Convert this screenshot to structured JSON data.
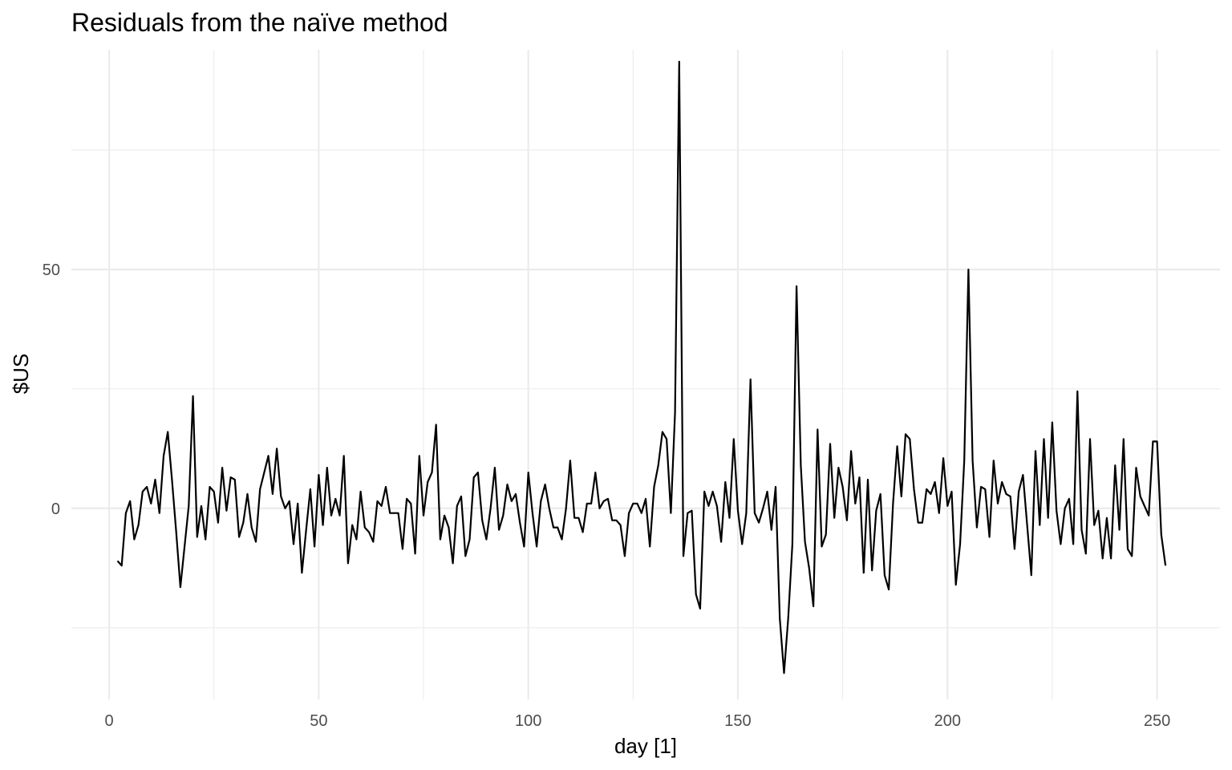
{
  "chart_data": {
    "type": "line",
    "title": "Residuals from the naïve method",
    "xlabel": "day [1]",
    "ylabel": "$US",
    "xlim": [
      -9,
      265
    ],
    "ylim": [
      -40,
      96
    ],
    "x_ticks": [
      0,
      50,
      100,
      150,
      200,
      250
    ],
    "x_minor_ticks": [
      25,
      75,
      125,
      175,
      225
    ],
    "y_ticks": [
      0,
      50
    ],
    "y_minor_ticks": [
      -25,
      25,
      75
    ],
    "grid": true,
    "legend": "none",
    "series": [
      {
        "color": "#000000",
        "x": [
          2,
          3,
          4,
          5,
          6,
          7,
          8,
          9,
          10,
          11,
          12,
          13,
          14,
          15,
          16,
          17,
          18,
          19,
          20,
          21,
          22,
          23,
          24,
          25,
          26,
          27,
          28,
          29,
          30,
          31,
          32,
          33,
          34,
          35,
          36,
          37,
          38,
          39,
          40,
          41,
          42,
          43,
          44,
          45,
          46,
          47,
          48,
          49,
          50,
          51,
          52,
          53,
          54,
          55,
          56,
          57,
          58,
          59,
          60,
          61,
          62,
          63,
          64,
          65,
          66,
          67,
          68,
          69,
          70,
          71,
          72,
          73,
          74,
          75,
          76,
          77,
          78,
          79,
          80,
          81,
          82,
          83,
          84,
          85,
          86,
          87,
          88,
          89,
          90,
          91,
          92,
          93,
          94,
          95,
          96,
          97,
          98,
          99,
          100,
          101,
          102,
          103,
          104,
          105,
          106,
          107,
          108,
          109,
          110,
          111,
          112,
          113,
          114,
          115,
          116,
          117,
          118,
          119,
          120,
          121,
          122,
          123,
          124,
          125,
          126,
          127,
          128,
          129,
          130,
          131,
          132,
          133,
          134,
          135,
          136,
          137,
          138,
          139,
          140,
          141,
          142,
          143,
          144,
          145,
          146,
          147,
          148,
          149,
          150,
          151,
          152,
          153,
          154,
          155,
          156,
          157,
          158,
          159,
          160,
          161,
          162,
          163,
          164,
          165,
          166,
          167,
          168,
          169,
          170,
          171,
          172,
          173,
          174,
          175,
          176,
          177,
          178,
          179,
          180,
          181,
          182,
          183,
          184,
          185,
          186,
          187,
          188,
          189,
          190,
          191,
          192,
          193,
          194,
          195,
          196,
          197,
          198,
          199,
          200,
          201,
          202,
          203,
          204,
          205,
          206,
          207,
          208,
          209,
          210,
          211,
          212,
          213,
          214,
          215,
          216,
          217,
          218,
          219,
          220,
          221,
          222,
          223,
          224,
          225,
          226,
          227,
          228,
          229,
          230,
          231,
          232,
          233,
          234,
          235,
          236,
          237,
          238,
          239,
          240,
          241,
          242,
          243,
          244,
          245,
          246,
          247,
          248,
          249,
          250,
          251,
          252
        ],
        "y": [
          -11,
          -12,
          -1,
          1.5,
          -6.5,
          -3.5,
          3.5,
          4.5,
          1,
          6,
          -1,
          11,
          16,
          6,
          -5,
          -16.5,
          -8,
          0.5,
          23.5,
          -6,
          0.5,
          -6.5,
          4.5,
          3.5,
          -3,
          8.5,
          -0.5,
          6.5,
          6,
          -6,
          -3,
          3,
          -4,
          -7,
          4,
          7.5,
          11,
          3,
          12.5,
          2.5,
          0,
          1.5,
          -7.5,
          1,
          -13.5,
          -4.5,
          4,
          -8,
          7,
          -3.5,
          8.5,
          -1.5,
          2,
          -1.5,
          11,
          -11.5,
          -3.5,
          -6.5,
          3.5,
          -4,
          -5,
          -7,
          1.5,
          0.5,
          4.5,
          -1,
          -1,
          -1,
          -8.5,
          2,
          1,
          -9.5,
          11,
          -1.5,
          5.5,
          7.5,
          17.5,
          -6.5,
          -1.5,
          -4,
          -11.5,
          0.5,
          2.5,
          -10,
          -6.5,
          6.5,
          7.5,
          -2.5,
          -6.5,
          0,
          8.5,
          -4.5,
          -1.5,
          5,
          1.5,
          3,
          -3,
          -8,
          7.5,
          -1,
          -8,
          1.5,
          5,
          0,
          -4,
          -4,
          -6.5,
          0,
          10,
          -2,
          -2,
          -5,
          1,
          1,
          7.5,
          0,
          1.5,
          2,
          -2.5,
          -2.5,
          -3.5,
          -10,
          -1,
          1,
          1,
          -1,
          2,
          -8,
          4.5,
          9,
          16,
          14.5,
          -1,
          20,
          93.5,
          -10,
          -1,
          -0.5,
          -18,
          -21,
          3.5,
          0.5,
          3.5,
          0.5,
          -7,
          5.5,
          -2,
          14.5,
          -0.5,
          -7.5,
          -1,
          27,
          -1,
          -3,
          0,
          3.5,
          -4.5,
          4.5,
          -23,
          -34.5,
          -23,
          -7.5,
          46.5,
          9,
          -7,
          -12.5,
          -20.5,
          16.5,
          -8,
          -5.5,
          13.5,
          -2,
          8.5,
          4.5,
          -2.5,
          12,
          1,
          6.5,
          -13.5,
          6,
          -13,
          -0.5,
          3,
          -14,
          -17,
          1,
          13,
          2.5,
          15.5,
          14.5,
          4,
          -3,
          -3,
          4,
          3,
          5.5,
          -1,
          10.5,
          0.5,
          3.5,
          -16,
          -7.5,
          10,
          50,
          10,
          -4,
          4.5,
          4,
          -6,
          10,
          1,
          5.5,
          3,
          2.5,
          -8.5,
          3.5,
          7,
          -3.5,
          -14,
          12,
          -3.5,
          14.5,
          -2,
          18,
          -0.5,
          -7.5,
          0,
          2,
          -7.5,
          24.5,
          -4.5,
          -9.5,
          14.5,
          -3.5,
          -0.5,
          -10.5,
          -2,
          -10.5,
          9,
          -4.5,
          14.5,
          -8.5,
          -10,
          8.5,
          2.5,
          0.5,
          -1.5,
          14,
          14,
          -5.5,
          -12
        ]
      }
    ]
  }
}
